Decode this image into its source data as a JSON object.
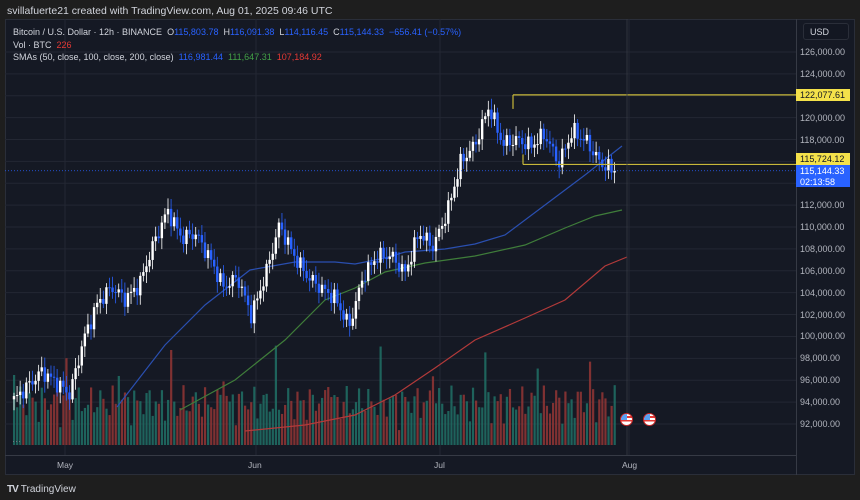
{
  "header": {
    "credit": "svillafuerte21 created with TradingView.com, Aug 01, 2025 09:46 UTC"
  },
  "legend": {
    "symbol": "Bitcoin / U.S. Dollar · 12h · BINANCE",
    "open_label": "O",
    "open": "115,803.78",
    "high_label": "H",
    "high": "116,091.38",
    "low_label": "L",
    "low": "114,116.45",
    "close_label": "C",
    "close": "115,144.33",
    "change": "−656.41 (−0.57%)",
    "vol_label": "Vol · BTC",
    "vol": "226",
    "sma_label": "SMAs (50, close, 100, close, 200, close)",
    "sma50": "116,981.44",
    "sma100": "111,647.31",
    "sma200": "107,184.92"
  },
  "price_axis": {
    "currency": "USD",
    "ticks": [
      "126,000.00",
      "124,000.00",
      "120,000.00",
      "118,000.00",
      "112,000.00",
      "110,000.00",
      "108,000.00",
      "106,000.00",
      "104,000.00",
      "102,000.00",
      "100,000.00",
      "98,000.00",
      "96,000.00",
      "94,000.00",
      "92,000.00"
    ],
    "level_high": "122,077.61",
    "level_low": "115,724.12",
    "last_price": "115,144.33",
    "countdown": "02:13:58"
  },
  "time_axis": {
    "labels": [
      "May",
      "Jun",
      "Jul",
      "Aug"
    ]
  },
  "footer": {
    "brand": "TradingView",
    "logo": "TV"
  },
  "colors": {
    "background": "#151924",
    "up_candle": "#ffffff",
    "down_candle": "#2962ff",
    "sma50": "#2a4fb0",
    "sma100": "#3f7d3a",
    "sma200": "#b33a3a",
    "vol_up": "#1f6b63",
    "vol_down": "#8c3434",
    "level_line": "#c8b83a",
    "tag_yellow": "#f4e14a",
    "tag_blue": "#2962ff"
  },
  "chart_data": {
    "type": "candlestick",
    "title": "Bitcoin / U.S. Dollar · 12h · BINANCE",
    "xlabel": "",
    "ylabel": "USD",
    "ylim": [
      91000,
      127500
    ],
    "x_ticks": [
      "May",
      "Jun",
      "Jul",
      "Aug"
    ],
    "grid": true,
    "approx_close_path": [
      {
        "date": "Apr 27",
        "close": 94200
      },
      {
        "date": "May 1",
        "close": 95500
      },
      {
        "date": "May 2",
        "close": 96800
      },
      {
        "date": "May 4",
        "close": 95800
      },
      {
        "date": "May 6",
        "close": 94700
      },
      {
        "date": "May 8",
        "close": 99800
      },
      {
        "date": "May 9",
        "close": 103100
      },
      {
        "date": "May 12",
        "close": 104500
      },
      {
        "date": "May 15",
        "close": 103400
      },
      {
        "date": "May 19",
        "close": 104800
      },
      {
        "date": "May 21",
        "close": 108500
      },
      {
        "date": "May 22",
        "close": 111500
      },
      {
        "date": "May 24",
        "close": 109000
      },
      {
        "date": "May 27",
        "close": 109400
      },
      {
        "date": "May 29",
        "close": 107200
      },
      {
        "date": "May 31",
        "close": 104500
      },
      {
        "date": "Jun 3",
        "close": 105400
      },
      {
        "date": "Jun 5",
        "close": 101900
      },
      {
        "date": "Jun 8",
        "close": 105600
      },
      {
        "date": "Jun 10",
        "close": 110200
      },
      {
        "date": "Jun 12",
        "close": 107500
      },
      {
        "date": "Jun 14",
        "close": 105500
      },
      {
        "date": "Jun 17",
        "close": 104400
      },
      {
        "date": "Jun 20",
        "close": 103500
      },
      {
        "date": "Jun 22",
        "close": 100900
      },
      {
        "date": "Jun 23",
        "close": 105500
      },
      {
        "date": "Jun 25",
        "close": 107300
      },
      {
        "date": "Jun 28",
        "close": 107400
      },
      {
        "date": "Jul 1",
        "close": 105800
      },
      {
        "date": "Jul 3",
        "close": 109500
      },
      {
        "date": "Jul 7",
        "close": 108200
      },
      {
        "date": "Jul 9",
        "close": 111300
      },
      {
        "date": "Jul 10",
        "close": 116000
      },
      {
        "date": "Jul 12",
        "close": 117500
      },
      {
        "date": "Jul 14",
        "close": 121000
      },
      {
        "date": "Jul 15",
        "close": 117600
      },
      {
        "date": "Jul 18",
        "close": 118000
      },
      {
        "date": "Jul 21",
        "close": 117400
      },
      {
        "date": "Jul 23",
        "close": 118500
      },
      {
        "date": "Jul 25",
        "close": 115800
      },
      {
        "date": "Jul 27",
        "close": 118800
      },
      {
        "date": "Jul 29",
        "close": 117800
      },
      {
        "date": "Jul 31",
        "close": 115800
      },
      {
        "date": "Aug 1",
        "close": 115144.33
      }
    ],
    "series": [
      {
        "name": "SMA 50",
        "last": 116981.44
      },
      {
        "name": "SMA 100",
        "last": 111647.31
      },
      {
        "name": "SMA 200",
        "last": 107184.92
      }
    ],
    "annotations": [
      {
        "type": "horizontal_range",
        "top": 122077.61,
        "bottom": 115724.12,
        "from": "Jul 14",
        "color": "#f4e14a"
      }
    ],
    "last_candle": {
      "open": 115803.78,
      "high": 116091.38,
      "low": 114116.45,
      "close": 115144.33,
      "change": -656.41,
      "change_pct": -0.57,
      "volume_btc": 226
    }
  }
}
